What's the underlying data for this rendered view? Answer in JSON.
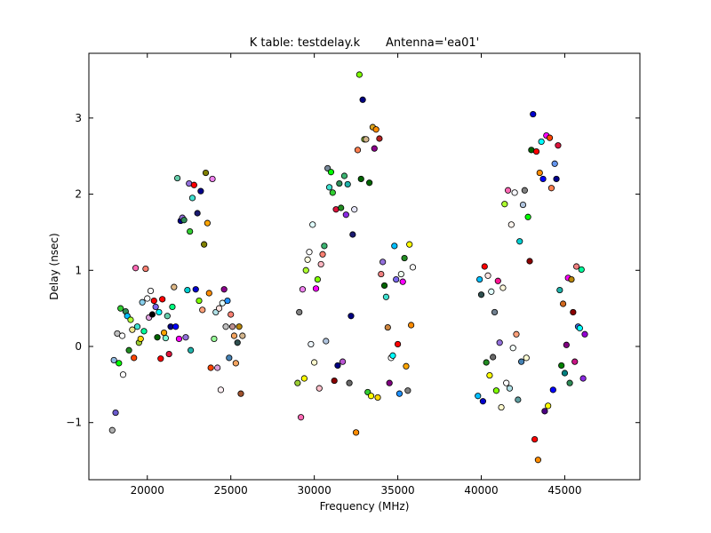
{
  "chart_data": {
    "type": "scatter",
    "title": "K table: testdelay.k       Antenna='ea01'",
    "xlabel": "Frequency (MHz)",
    "ylabel": "Delay (nsec)",
    "xlim": [
      16500,
      49500
    ],
    "ylim": [
      -1.75,
      3.85
    ],
    "xticks": [
      20000,
      25000,
      30000,
      35000,
      40000,
      45000
    ],
    "xtick_labels": [
      "20000",
      "25000",
      "30000",
      "35000",
      "40000",
      "45000"
    ],
    "yticks": [
      -1,
      0,
      1,
      2,
      3
    ],
    "ytick_labels": [
      "−1",
      "0",
      "1",
      "2",
      "3"
    ],
    "grid": false,
    "legend": "none",
    "marker_edge_color": "#000000",
    "points": [
      {
        "x": 17900,
        "y": -1.1,
        "c": "#b0b0b0"
      },
      {
        "x": 18000,
        "y": -0.18,
        "c": "#8fb8e0"
      },
      {
        "x": 18100,
        "y": -0.87,
        "c": "#6a5acd"
      },
      {
        "x": 18200,
        "y": 0.17,
        "c": "#c0c0c0"
      },
      {
        "x": 18300,
        "y": -0.22,
        "c": "#00ff00"
      },
      {
        "x": 18400,
        "y": 0.5,
        "c": "#32cd32"
      },
      {
        "x": 18500,
        "y": 0.14,
        "c": "#ffffff"
      },
      {
        "x": 18550,
        "y": -0.37,
        "c": "#ffffff"
      },
      {
        "x": 18700,
        "y": 0.46,
        "c": "#2e8b57"
      },
      {
        "x": 18800,
        "y": 0.4,
        "c": "#00bfff"
      },
      {
        "x": 18900,
        "y": -0.05,
        "c": "#228b22"
      },
      {
        "x": 19000,
        "y": 0.35,
        "c": "#adff2f"
      },
      {
        "x": 19100,
        "y": 0.22,
        "c": "#f0e68c"
      },
      {
        "x": 19200,
        "y": -0.15,
        "c": "#ff4500"
      },
      {
        "x": 19300,
        "y": 1.03,
        "c": "#ff69b4"
      },
      {
        "x": 19400,
        "y": 0.26,
        "c": "#40e0d0"
      },
      {
        "x": 19500,
        "y": 0.05,
        "c": "#9acd32"
      },
      {
        "x": 19600,
        "y": 0.1,
        "c": "#ffd700"
      },
      {
        "x": 19700,
        "y": 0.58,
        "c": "#87ceeb"
      },
      {
        "x": 19800,
        "y": 0.2,
        "c": "#00fa9a"
      },
      {
        "x": 19900,
        "y": 1.02,
        "c": "#fa8072"
      },
      {
        "x": 20000,
        "y": 0.63,
        "c": "#ffffff"
      },
      {
        "x": 20100,
        "y": 0.38,
        "c": "#dda0dd"
      },
      {
        "x": 20200,
        "y": 0.73,
        "c": "#ffffff"
      },
      {
        "x": 20300,
        "y": 0.42,
        "c": "#000000"
      },
      {
        "x": 20400,
        "y": 0.6,
        "c": "#ff0000"
      },
      {
        "x": 20500,
        "y": 0.52,
        "c": "#7b68ee"
      },
      {
        "x": 20600,
        "y": 0.12,
        "c": "#006400"
      },
      {
        "x": 20700,
        "y": 0.45,
        "c": "#00ffff"
      },
      {
        "x": 20800,
        "y": -0.16,
        "c": "#ff0000"
      },
      {
        "x": 20900,
        "y": 0.62,
        "c": "#ff0000"
      },
      {
        "x": 21000,
        "y": 0.18,
        "c": "#ffa500"
      },
      {
        "x": 21100,
        "y": 0.11,
        "c": "#7fffd4"
      },
      {
        "x": 21200,
        "y": 0.4,
        "c": "#66cdaa"
      },
      {
        "x": 21300,
        "y": -0.1,
        "c": "#dc143c"
      },
      {
        "x": 21400,
        "y": 0.26,
        "c": "#000080"
      },
      {
        "x": 21500,
        "y": 0.52,
        "c": "#00ff7f"
      },
      {
        "x": 21600,
        "y": 0.78,
        "c": "#deb887"
      },
      {
        "x": 21700,
        "y": 0.26,
        "c": "#0000ff"
      },
      {
        "x": 21800,
        "y": 2.21,
        "c": "#66cdaa"
      },
      {
        "x": 21900,
        "y": 0.1,
        "c": "#ff00ff"
      },
      {
        "x": 22000,
        "y": 1.65,
        "c": "#00008b"
      },
      {
        "x": 22100,
        "y": 1.69,
        "c": "#9370db"
      },
      {
        "x": 22200,
        "y": 1.66,
        "c": "#2e8b57"
      },
      {
        "x": 22300,
        "y": 0.12,
        "c": "#9370db"
      },
      {
        "x": 22400,
        "y": 0.74,
        "c": "#00ced1"
      },
      {
        "x": 22500,
        "y": 2.14,
        "c": "#9370db"
      },
      {
        "x": 22550,
        "y": 1.51,
        "c": "#32cd32"
      },
      {
        "x": 22600,
        "y": -0.05,
        "c": "#20b2aa"
      },
      {
        "x": 22700,
        "y": 1.95,
        "c": "#40e0d0"
      },
      {
        "x": 22800,
        "y": 2.12,
        "c": "#ff0000"
      },
      {
        "x": 22900,
        "y": 0.75,
        "c": "#0000cd"
      },
      {
        "x": 23000,
        "y": 1.75,
        "c": "#191970"
      },
      {
        "x": 23100,
        "y": 0.6,
        "c": "#7cfc00"
      },
      {
        "x": 23200,
        "y": 2.04,
        "c": "#00008b"
      },
      {
        "x": 23300,
        "y": 0.48,
        "c": "#ffa07a"
      },
      {
        "x": 23400,
        "y": 1.34,
        "c": "#808000"
      },
      {
        "x": 23500,
        "y": 2.28,
        "c": "#808000"
      },
      {
        "x": 23600,
        "y": 1.62,
        "c": "#ffa500"
      },
      {
        "x": 23700,
        "y": 0.7,
        "c": "#ff8c00"
      },
      {
        "x": 23800,
        "y": -0.28,
        "c": "#ff4500"
      },
      {
        "x": 23900,
        "y": 2.2,
        "c": "#ee82ee"
      },
      {
        "x": 24000,
        "y": 0.1,
        "c": "#98fb98"
      },
      {
        "x": 24100,
        "y": 0.45,
        "c": "#b0e0e6"
      },
      {
        "x": 24200,
        "y": -0.28,
        "c": "#dda0dd"
      },
      {
        "x": 24300,
        "y": 0.5,
        "c": "#ffe4e1"
      },
      {
        "x": 24400,
        "y": -0.57,
        "c": "#fff0f5"
      },
      {
        "x": 24500,
        "y": 0.57,
        "c": "#e0ffff"
      },
      {
        "x": 24600,
        "y": 0.75,
        "c": "#8b008b"
      },
      {
        "x": 24700,
        "y": 0.26,
        "c": "#c0c0c0"
      },
      {
        "x": 24800,
        "y": 0.6,
        "c": "#1e90ff"
      },
      {
        "x": 24900,
        "y": -0.15,
        "c": "#4682b4"
      },
      {
        "x": 25000,
        "y": 0.42,
        "c": "#fa8072"
      },
      {
        "x": 25100,
        "y": 0.26,
        "c": "#bc8f8f"
      },
      {
        "x": 25200,
        "y": 0.14,
        "c": "#f4a460"
      },
      {
        "x": 25300,
        "y": -0.22,
        "c": "#f4a460"
      },
      {
        "x": 25400,
        "y": 0.05,
        "c": "#2f4f4f"
      },
      {
        "x": 25500,
        "y": 0.26,
        "c": "#b8860b"
      },
      {
        "x": 25600,
        "y": -0.62,
        "c": "#a0522d"
      },
      {
        "x": 25700,
        "y": 0.14,
        "c": "#d2b48c"
      },
      {
        "x": 29000,
        "y": -0.48,
        "c": "#9acd32"
      },
      {
        "x": 29100,
        "y": 0.45,
        "c": "#808080"
      },
      {
        "x": 29200,
        "y": -0.93,
        "c": "#ff69b4"
      },
      {
        "x": 29300,
        "y": 0.75,
        "c": "#ee82ee"
      },
      {
        "x": 29400,
        "y": -0.42,
        "c": "#ffff00"
      },
      {
        "x": 29500,
        "y": 1.0,
        "c": "#adff2f"
      },
      {
        "x": 29600,
        "y": 1.14,
        "c": "#ffffe0"
      },
      {
        "x": 29700,
        "y": 1.24,
        "c": "#ffffff"
      },
      {
        "x": 29800,
        "y": 0.03,
        "c": "#f0f8ff"
      },
      {
        "x": 29900,
        "y": 1.6,
        "c": "#e0ffff"
      },
      {
        "x": 30000,
        "y": -0.21,
        "c": "#fffacd"
      },
      {
        "x": 30100,
        "y": 0.76,
        "c": "#ff00ff"
      },
      {
        "x": 30200,
        "y": 0.88,
        "c": "#7fff00"
      },
      {
        "x": 30300,
        "y": -0.55,
        "c": "#ffc0cb"
      },
      {
        "x": 30400,
        "y": 1.08,
        "c": "#ffb6c1"
      },
      {
        "x": 30500,
        "y": 1.21,
        "c": "#fa8072"
      },
      {
        "x": 30600,
        "y": 1.32,
        "c": "#3cb371"
      },
      {
        "x": 30700,
        "y": 0.07,
        "c": "#b0c4de"
      },
      {
        "x": 30800,
        "y": 2.34,
        "c": "#778899"
      },
      {
        "x": 30900,
        "y": 2.09,
        "c": "#40e0d0"
      },
      {
        "x": 31000,
        "y": 2.29,
        "c": "#00ff00"
      },
      {
        "x": 31100,
        "y": 2.02,
        "c": "#32cd32"
      },
      {
        "x": 31200,
        "y": -0.45,
        "c": "#8b0000"
      },
      {
        "x": 31300,
        "y": 1.8,
        "c": "#dc143c"
      },
      {
        "x": 31400,
        "y": -0.25,
        "c": "#000080"
      },
      {
        "x": 31500,
        "y": 2.14,
        "c": "#2e8b57"
      },
      {
        "x": 31600,
        "y": 1.82,
        "c": "#228b22"
      },
      {
        "x": 31700,
        "y": -0.2,
        "c": "#ba55d3"
      },
      {
        "x": 31800,
        "y": 2.24,
        "c": "#3cb371"
      },
      {
        "x": 31900,
        "y": 1.73,
        "c": "#8a2be2"
      },
      {
        "x": 32000,
        "y": 2.13,
        "c": "#20b2aa"
      },
      {
        "x": 32100,
        "y": -0.48,
        "c": "#696969"
      },
      {
        "x": 32200,
        "y": 0.4,
        "c": "#000080"
      },
      {
        "x": 32300,
        "y": 1.47,
        "c": "#191970"
      },
      {
        "x": 32400,
        "y": 1.8,
        "c": "#e6e6fa"
      },
      {
        "x": 32500,
        "y": -1.13,
        "c": "#ff8c00"
      },
      {
        "x": 32600,
        "y": 2.58,
        "c": "#ff7f50"
      },
      {
        "x": 32700,
        "y": 3.57,
        "c": "#7cfc00"
      },
      {
        "x": 32800,
        "y": 2.2,
        "c": "#006400"
      },
      {
        "x": 32900,
        "y": 3.24,
        "c": "#000080"
      },
      {
        "x": 33000,
        "y": 2.72,
        "c": "#9acd32"
      },
      {
        "x": 33100,
        "y": 2.72,
        "c": "#d2b48c"
      },
      {
        "x": 33200,
        "y": -0.6,
        "c": "#32cd32"
      },
      {
        "x": 33300,
        "y": 2.15,
        "c": "#006400"
      },
      {
        "x": 33400,
        "y": -0.65,
        "c": "#ffff00"
      },
      {
        "x": 33500,
        "y": 2.88,
        "c": "#daa520"
      },
      {
        "x": 33600,
        "y": 2.6,
        "c": "#8b008b"
      },
      {
        "x": 33700,
        "y": 2.85,
        "c": "#ff8c00"
      },
      {
        "x": 33800,
        "y": -0.67,
        "c": "#ffd700"
      },
      {
        "x": 33900,
        "y": 2.73,
        "c": "#b22222"
      },
      {
        "x": 34000,
        "y": 0.95,
        "c": "#f08080"
      },
      {
        "x": 34100,
        "y": 1.11,
        "c": "#9370db"
      },
      {
        "x": 34200,
        "y": 0.8,
        "c": "#006400"
      },
      {
        "x": 34300,
        "y": 0.65,
        "c": "#40e0d0"
      },
      {
        "x": 34400,
        "y": 0.25,
        "c": "#cd853f"
      },
      {
        "x": 34500,
        "y": -0.48,
        "c": "#800080"
      },
      {
        "x": 34600,
        "y": -0.15,
        "c": "#ffffff"
      },
      {
        "x": 34700,
        "y": -0.12,
        "c": "#00ffff"
      },
      {
        "x": 34800,
        "y": 1.32,
        "c": "#00bfff"
      },
      {
        "x": 34900,
        "y": 0.88,
        "c": "#7b68ee"
      },
      {
        "x": 35000,
        "y": 0.03,
        "c": "#ff0000"
      },
      {
        "x": 35100,
        "y": -0.62,
        "c": "#1e90ff"
      },
      {
        "x": 35200,
        "y": 0.95,
        "c": "#f0fff0"
      },
      {
        "x": 35300,
        "y": 0.85,
        "c": "#ff00ff"
      },
      {
        "x": 35400,
        "y": 1.16,
        "c": "#228b22"
      },
      {
        "x": 35500,
        "y": -0.26,
        "c": "#ffa500"
      },
      {
        "x": 35600,
        "y": -0.58,
        "c": "#808080"
      },
      {
        "x": 35700,
        "y": 1.34,
        "c": "#ffff00"
      },
      {
        "x": 35800,
        "y": 0.28,
        "c": "#ff8c00"
      },
      {
        "x": 35900,
        "y": 1.04,
        "c": "#f5f5f5"
      },
      {
        "x": 39800,
        "y": -0.65,
        "c": "#00bfff"
      },
      {
        "x": 39900,
        "y": 0.88,
        "c": "#00bfff"
      },
      {
        "x": 40000,
        "y": 0.68,
        "c": "#2f4f4f"
      },
      {
        "x": 40100,
        "y": -0.72,
        "c": "#0000cd"
      },
      {
        "x": 40200,
        "y": 1.05,
        "c": "#ff0000"
      },
      {
        "x": 40300,
        "y": -0.21,
        "c": "#228b22"
      },
      {
        "x": 40400,
        "y": 0.93,
        "c": "#ffe4e1"
      },
      {
        "x": 40500,
        "y": -0.38,
        "c": "#ffff00"
      },
      {
        "x": 40600,
        "y": 0.72,
        "c": "#e0ffff"
      },
      {
        "x": 40700,
        "y": -0.14,
        "c": "#696969"
      },
      {
        "x": 40800,
        "y": 0.45,
        "c": "#708090"
      },
      {
        "x": 40900,
        "y": -0.58,
        "c": "#7fff00"
      },
      {
        "x": 41000,
        "y": 0.86,
        "c": "#ff1493"
      },
      {
        "x": 41100,
        "y": 0.05,
        "c": "#9370db"
      },
      {
        "x": 41200,
        "y": -0.8,
        "c": "#fffacd"
      },
      {
        "x": 41300,
        "y": 0.77,
        "c": "#fff8dc"
      },
      {
        "x": 41400,
        "y": 1.87,
        "c": "#adff2f"
      },
      {
        "x": 41500,
        "y": -0.48,
        "c": "#ffffff"
      },
      {
        "x": 41600,
        "y": 2.05,
        "c": "#ff69b4"
      },
      {
        "x": 41700,
        "y": -0.55,
        "c": "#b0e0e6"
      },
      {
        "x": 41800,
        "y": 1.6,
        "c": "#fff5ee"
      },
      {
        "x": 41900,
        "y": -0.02,
        "c": "#f5fffa"
      },
      {
        "x": 42000,
        "y": 2.02,
        "c": "#f8f8ff"
      },
      {
        "x": 42100,
        "y": 0.16,
        "c": "#ffa07a"
      },
      {
        "x": 42200,
        "y": -0.7,
        "c": "#5f9ea0"
      },
      {
        "x": 42300,
        "y": 1.38,
        "c": "#00ced1"
      },
      {
        "x": 42400,
        "y": -0.2,
        "c": "#4682b4"
      },
      {
        "x": 42500,
        "y": 1.86,
        "c": "#b0c4de"
      },
      {
        "x": 42600,
        "y": 2.05,
        "c": "#808080"
      },
      {
        "x": 42700,
        "y": -0.15,
        "c": "#fafad2"
      },
      {
        "x": 42800,
        "y": 1.7,
        "c": "#00ff00"
      },
      {
        "x": 42900,
        "y": 1.12,
        "c": "#8b0000"
      },
      {
        "x": 43000,
        "y": 2.58,
        "c": "#006400"
      },
      {
        "x": 43100,
        "y": 3.05,
        "c": "#0000cd"
      },
      {
        "x": 43200,
        "y": -1.22,
        "c": "#ff0000"
      },
      {
        "x": 43300,
        "y": 2.56,
        "c": "#ff0000"
      },
      {
        "x": 43400,
        "y": -1.49,
        "c": "#ff8c00"
      },
      {
        "x": 43500,
        "y": 2.28,
        "c": "#ff8c00"
      },
      {
        "x": 43600,
        "y": 2.69,
        "c": "#00ffff"
      },
      {
        "x": 43700,
        "y": 2.2,
        "c": "#0000ff"
      },
      {
        "x": 43800,
        "y": -0.85,
        "c": "#4b0082"
      },
      {
        "x": 43900,
        "y": 2.77,
        "c": "#ff00ff"
      },
      {
        "x": 44000,
        "y": -0.78,
        "c": "#ffff00"
      },
      {
        "x": 44100,
        "y": 2.74,
        "c": "#ff4500"
      },
      {
        "x": 44200,
        "y": 2.08,
        "c": "#ff7f50"
      },
      {
        "x": 44300,
        "y": -0.57,
        "c": "#0000ff"
      },
      {
        "x": 44400,
        "y": 2.4,
        "c": "#6495ed"
      },
      {
        "x": 44500,
        "y": 2.2,
        "c": "#00008b"
      },
      {
        "x": 44600,
        "y": 2.64,
        "c": "#dc143c"
      },
      {
        "x": 44700,
        "y": 0.74,
        "c": "#20b2aa"
      },
      {
        "x": 44800,
        "y": -0.25,
        "c": "#008000"
      },
      {
        "x": 44900,
        "y": 0.56,
        "c": "#d2691e"
      },
      {
        "x": 45000,
        "y": -0.35,
        "c": "#008080"
      },
      {
        "x": 45100,
        "y": 0.02,
        "c": "#800080"
      },
      {
        "x": 45200,
        "y": 0.9,
        "c": "#ff00ff"
      },
      {
        "x": 45300,
        "y": -0.48,
        "c": "#2e8b57"
      },
      {
        "x": 45400,
        "y": 0.88,
        "c": "#b8860b"
      },
      {
        "x": 45500,
        "y": 0.45,
        "c": "#8b0000"
      },
      {
        "x": 45600,
        "y": -0.2,
        "c": "#c71585"
      },
      {
        "x": 45700,
        "y": 1.05,
        "c": "#f08080"
      },
      {
        "x": 45800,
        "y": 0.26,
        "c": "#4169e1"
      },
      {
        "x": 45900,
        "y": 0.24,
        "c": "#00ffff"
      },
      {
        "x": 46000,
        "y": 1.01,
        "c": "#00fa9a"
      },
      {
        "x": 46100,
        "y": -0.42,
        "c": "#8a2be2"
      },
      {
        "x": 46200,
        "y": 0.16,
        "c": "#9400d3"
      }
    ]
  }
}
